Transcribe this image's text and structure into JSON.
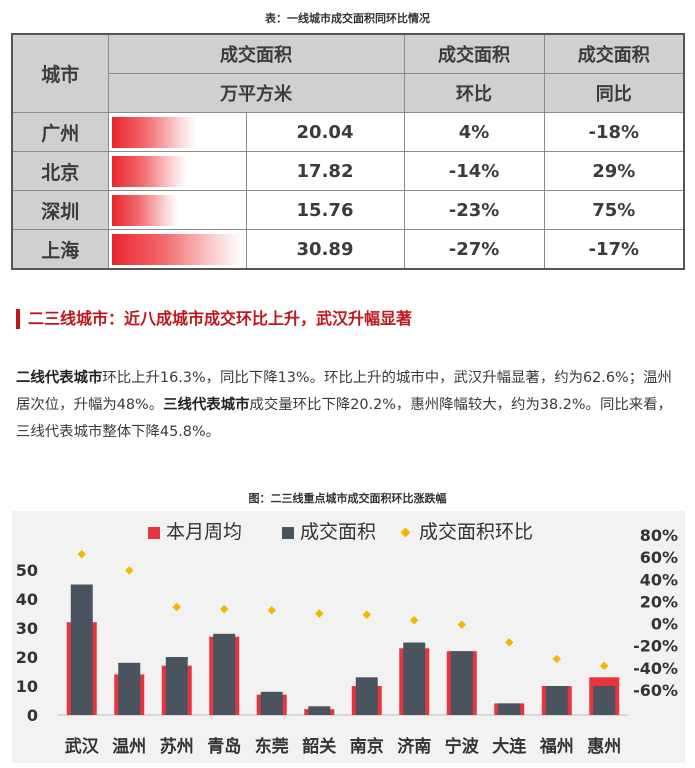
{
  "table_caption": "表：一线城市成交面积同环比情况",
  "table": {
    "header_city": "城市",
    "header_area": "成交面积",
    "header_area_unit": "万平方米",
    "header_mom": "成交面积",
    "header_mom_sub": "环比",
    "header_yoy": "成交面积",
    "header_yoy_sub": "同比",
    "rows": [
      {
        "city": "广州",
        "area": "20.04",
        "mom": "4%",
        "yoy": "-18%",
        "bar": 0.649
      },
      {
        "city": "北京",
        "area": "17.82",
        "mom": "-14%",
        "yoy": "29%",
        "bar": 0.577
      },
      {
        "city": "深圳",
        "area": "15.76",
        "mom": "-23%",
        "yoy": "75%",
        "bar": 0.51
      },
      {
        "city": "上海",
        "area": "30.89",
        "mom": "-27%",
        "yoy": "-17%",
        "bar": 1.0
      }
    ]
  },
  "section": {
    "title": "二三线城市：近八成城市成交环比上升，武汉升幅显著",
    "para_b1": "二线代表城市",
    "para_t1": "环比上升16.3%，同比下降13%。环比上升的城市中，武汉升幅显著，约为62.6%；温州居次位，升幅为48%。",
    "para_b2": "三线代表城市",
    "para_t2": "成交量环比下降20.2%，惠州降幅较大，约为38.2%。同比来看，三线代表城市整体下降45.8%。"
  },
  "chart_caption": "图：二三线重点城市成交面积环比涨跌幅",
  "chart_data": {
    "type": "bar",
    "categories": [
      "武汉",
      "温州",
      "苏州",
      "青岛",
      "东莞",
      "韶关",
      "南京",
      "济南",
      "宁波",
      "大连",
      "福州",
      "惠州"
    ],
    "series": [
      {
        "name": "本月周均",
        "type": "bar",
        "color": "#e8343c",
        "values": [
          32,
          14,
          17,
          27,
          7,
          2,
          10,
          23,
          22,
          4,
          10,
          13
        ]
      },
      {
        "name": "成交面积",
        "type": "bar",
        "color": "#4a5360",
        "values": [
          45,
          18,
          20,
          28,
          8,
          3,
          13,
          25,
          22,
          4,
          10,
          10
        ]
      },
      {
        "name": "成交面积环比",
        "type": "scatter",
        "axis": "right",
        "color": "#f5b800",
        "values": [
          62.6,
          48,
          15,
          13,
          12,
          9,
          8,
          3,
          -1,
          -17,
          -32,
          -38.2
        ]
      }
    ],
    "ylim": [
      0,
      50
    ],
    "yticks": [
      "0",
      "10",
      "20",
      "30",
      "40",
      "50"
    ],
    "y2lim": [
      -60,
      80
    ],
    "y2ticks": [
      "80%",
      "60%",
      "40%",
      "20%",
      "0%",
      "-20%",
      "-40%",
      "-60%"
    ],
    "legend": "top",
    "grid": false
  }
}
